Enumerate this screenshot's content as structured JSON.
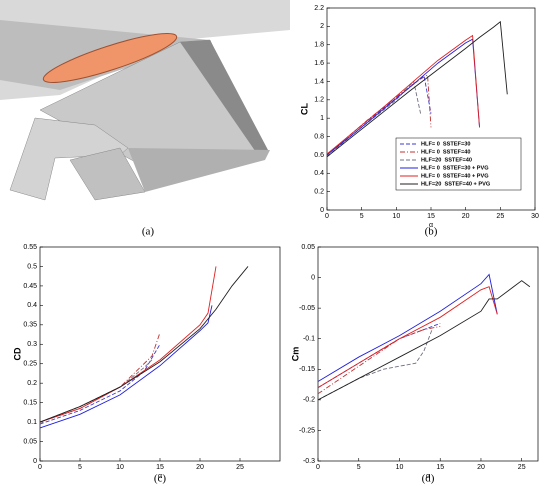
{
  "image_caption": "(a)",
  "chart_data": [
    {
      "type": "line",
      "caption": "(b)",
      "ylabel": "CL",
      "xlabel": "α",
      "xlim": [
        0,
        30
      ],
      "xticks": [
        0,
        5,
        10,
        15,
        20,
        25,
        30
      ],
      "ylim": [
        0,
        2.2
      ],
      "yticks": [
        0,
        0.2,
        0.4,
        0.6,
        0.8,
        1,
        1.2,
        1.4,
        1.6,
        1.8,
        2,
        2.2
      ],
      "legend": "lower right",
      "series": [
        {
          "name": "HLF= 0  SSTEF=30",
          "color": "#3a3ad0",
          "linestyle": "dashed",
          "x": [
            0,
            2,
            4,
            6,
            8,
            10,
            12,
            13,
            14,
            15
          ],
          "values": [
            0.6,
            0.73,
            0.86,
            0.98,
            1.1,
            1.22,
            1.34,
            1.4,
            1.46,
            1.05
          ]
        },
        {
          "name": "HLF= 0  SSTEF=40",
          "color": "#c03030",
          "linestyle": "dashdot",
          "x": [
            0,
            2,
            4,
            6,
            8,
            10,
            12,
            14,
            14.5,
            15
          ],
          "values": [
            0.6,
            0.73,
            0.86,
            0.99,
            1.11,
            1.23,
            1.35,
            1.45,
            1.47,
            0.9
          ]
        },
        {
          "name": "HLF=20  SSTEF=40",
          "color": "#707080",
          "linestyle": "dashed",
          "x": [
            0,
            2,
            4,
            6,
            8,
            10,
            12,
            12.5,
            13.5
          ],
          "values": [
            0.58,
            0.71,
            0.84,
            0.96,
            1.08,
            1.2,
            1.36,
            1.4,
            1.05
          ]
        },
        {
          "name": "HLF= 0  SSTEF=30 + PVG",
          "color": "#2020e0",
          "linestyle": "solid",
          "x": [
            0,
            4,
            8,
            12,
            16,
            20,
            21,
            22
          ],
          "values": [
            0.6,
            0.84,
            1.09,
            1.34,
            1.6,
            1.82,
            1.86,
            0.9
          ]
        },
        {
          "name": "HLF= 0  SSTEF=40 + PVG",
          "color": "#e02020",
          "linestyle": "solid",
          "x": [
            0,
            4,
            8,
            12,
            16,
            20,
            21,
            22
          ],
          "values": [
            0.61,
            0.86,
            1.11,
            1.37,
            1.63,
            1.85,
            1.9,
            0.9
          ]
        },
        {
          "name": "HLF=20  SSTEF=40 + PVG",
          "color": "#202020",
          "linestyle": "solid",
          "x": [
            0,
            4,
            8,
            12,
            16,
            20,
            22,
            24,
            25,
            26
          ],
          "values": [
            0.58,
            0.82,
            1.06,
            1.3,
            1.53,
            1.76,
            1.88,
            1.99,
            2.05,
            1.26
          ]
        }
      ]
    },
    {
      "type": "line",
      "caption": "(c)",
      "ylabel": "CD",
      "xlabel": "α",
      "xlim": [
        0,
        30
      ],
      "xticks": [
        0,
        5,
        10,
        15,
        20,
        25
      ],
      "ylim": [
        0,
        0.55
      ],
      "yticks": [
        0,
        0.05,
        0.1,
        0.15,
        0.2,
        0.25,
        0.3,
        0.35,
        0.4,
        0.45,
        0.5,
        0.55
      ],
      "series": [
        {
          "color": "#3a3ad0",
          "linestyle": "dashed",
          "x": [
            0,
            5,
            10,
            13,
            15
          ],
          "values": [
            0.095,
            0.13,
            0.18,
            0.23,
            0.3
          ]
        },
        {
          "color": "#c03030",
          "linestyle": "dashdot",
          "x": [
            0,
            5,
            10,
            14,
            15
          ],
          "values": [
            0.1,
            0.135,
            0.19,
            0.27,
            0.33
          ]
        },
        {
          "color": "#707080",
          "linestyle": "dashed",
          "x": [
            0,
            5,
            10,
            13,
            14
          ],
          "values": [
            0.1,
            0.14,
            0.19,
            0.24,
            0.26
          ]
        },
        {
          "color": "#2020e0",
          "linestyle": "solid",
          "x": [
            0,
            5,
            10,
            15,
            20,
            21,
            21.5
          ],
          "values": [
            0.085,
            0.12,
            0.17,
            0.245,
            0.335,
            0.355,
            0.4
          ]
        },
        {
          "color": "#e02020",
          "linestyle": "solid",
          "x": [
            0,
            5,
            10,
            15,
            20,
            21,
            22
          ],
          "values": [
            0.1,
            0.135,
            0.19,
            0.26,
            0.35,
            0.38,
            0.5
          ]
        },
        {
          "color": "#202020",
          "linestyle": "solid",
          "x": [
            0,
            5,
            10,
            15,
            20,
            22,
            24,
            26
          ],
          "values": [
            0.1,
            0.14,
            0.19,
            0.255,
            0.34,
            0.39,
            0.45,
            0.5
          ]
        }
      ]
    },
    {
      "type": "line",
      "caption": "(d)",
      "ylabel": "Cm",
      "xlabel": "α",
      "xlim": [
        0,
        27
      ],
      "xticks": [
        0,
        5,
        10,
        15,
        20,
        25
      ],
      "ylim": [
        -0.3,
        0.05
      ],
      "yticks": [
        -0.3,
        -0.25,
        -0.2,
        -0.15,
        -0.1,
        -0.05,
        0,
        0.05
      ],
      "series": [
        {
          "color": "#3a3ad0",
          "linestyle": "dashed",
          "x": [
            0,
            5,
            10,
            14,
            15
          ],
          "values": [
            -0.18,
            -0.14,
            -0.1,
            -0.08,
            -0.075
          ]
        },
        {
          "color": "#c03030",
          "linestyle": "dashdot",
          "x": [
            0,
            5,
            10,
            13,
            15
          ],
          "values": [
            -0.19,
            -0.145,
            -0.1,
            -0.085,
            -0.08
          ]
        },
        {
          "color": "#707080",
          "linestyle": "dashed",
          "x": [
            0,
            5,
            8,
            12,
            13,
            14
          ],
          "values": [
            -0.2,
            -0.165,
            -0.15,
            -0.14,
            -0.12,
            -0.085
          ]
        },
        {
          "color": "#2020e0",
          "linestyle": "solid",
          "x": [
            0,
            5,
            10,
            15,
            20,
            21,
            22
          ],
          "values": [
            -0.17,
            -0.13,
            -0.095,
            -0.055,
            -0.01,
            0.005,
            -0.06
          ]
        },
        {
          "color": "#e02020",
          "linestyle": "solid",
          "x": [
            0,
            5,
            10,
            15,
            20,
            21,
            22
          ],
          "values": [
            -0.18,
            -0.14,
            -0.1,
            -0.065,
            -0.02,
            -0.015,
            -0.06
          ]
        },
        {
          "color": "#202020",
          "linestyle": "solid",
          "x": [
            0,
            5,
            10,
            15,
            20,
            21,
            22,
            24,
            25,
            26
          ],
          "values": [
            -0.2,
            -0.165,
            -0.13,
            -0.095,
            -0.055,
            -0.035,
            -0.035,
            -0.015,
            -0.005,
            -0.015
          ]
        }
      ]
    }
  ]
}
